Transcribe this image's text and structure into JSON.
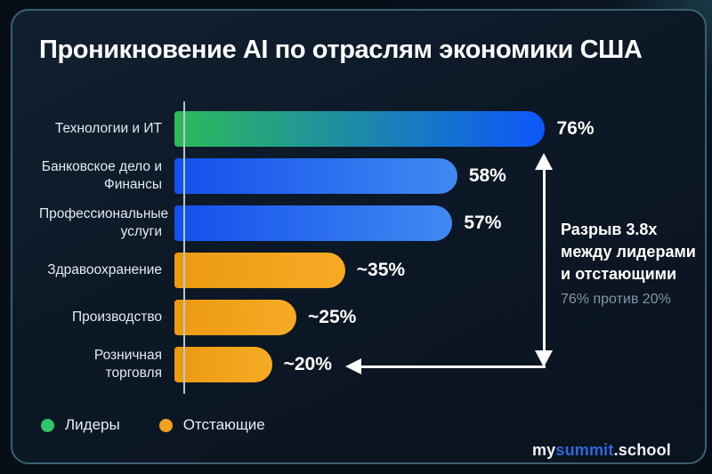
{
  "title": "Проникновение AI по отраслям экономики США",
  "chart_data": {
    "type": "bar",
    "orientation": "horizontal",
    "title": "Проникновение AI по отраслям экономики США",
    "categories": [
      "Технологии и ИТ",
      "Банковское дело и Финансы",
      "Профессиональные услуги",
      "Здравоохранение",
      "Производство",
      "Розничная торговля"
    ],
    "values": [
      76,
      58,
      57,
      35,
      25,
      20
    ],
    "value_labels": [
      "76%",
      "58%",
      "57%",
      "~35%",
      "~25%",
      "~20%"
    ],
    "groups": [
      "leader",
      "blue",
      "blue",
      "laggard",
      "laggard",
      "laggard"
    ],
    "xlim": [
      0,
      100
    ],
    "grid": false,
    "legend_position": "bottom-left",
    "legend": [
      {
        "label": "Лидеры",
        "color": "#2ec468"
      },
      {
        "label": "Отстающие",
        "color": "#f0a21d"
      }
    ],
    "annotation": {
      "lines": [
        "Разрыв 3.8x",
        "между лидерами",
        "и отстающими"
      ],
      "subtext": "76% против 20%"
    }
  },
  "footer": {
    "prefix": "my",
    "highlight": "summit",
    "suffix": ".school"
  },
  "colors": {
    "background": "#070e18",
    "card_bg": "#0d1826",
    "card_border": "#3a6170",
    "axis": "#b9c6d2",
    "label_text": "#e3eaf2",
    "value_text": "#ffffff",
    "subtext": "#8593a5",
    "arrow": "#ffffff",
    "bar_leader_gradient": [
      "#2cbb59",
      "#0d57fb"
    ],
    "bar_blue_gradient": [
      "#1450ec",
      "#4189f2"
    ],
    "bar_laggard_gradient": [
      "#ec9a10",
      "#f6ab25"
    ]
  }
}
